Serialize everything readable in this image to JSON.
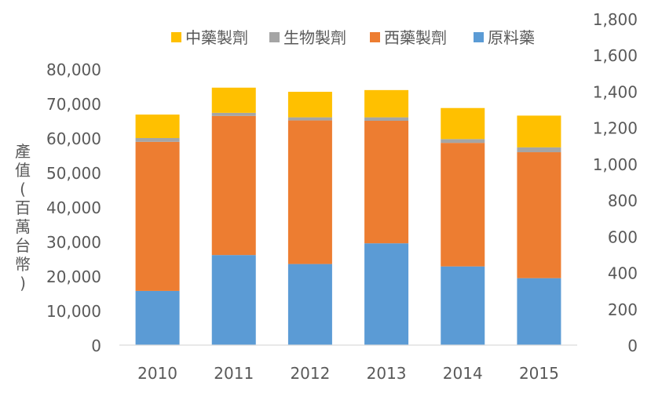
{
  "chart_data": {
    "type": "bar",
    "stacked": true,
    "title": "",
    "ylabel": "產值(百萬台幣)",
    "categories": [
      "2010",
      "2011",
      "2012",
      "2013",
      "2014",
      "2015"
    ],
    "series": [
      {
        "name": "原料藥",
        "color": "#5B9BD5",
        "values": [
          15700,
          26100,
          23500,
          29500,
          22800,
          19400
        ]
      },
      {
        "name": "西藥製劑",
        "color": "#ED7D31",
        "values": [
          43200,
          40300,
          41600,
          35500,
          35800,
          36500
        ]
      },
      {
        "name": "生物製劑",
        "color": "#A5A5A5",
        "values": [
          1100,
          900,
          900,
          1000,
          1100,
          1400
        ]
      },
      {
        "name": "中藥製劑",
        "color": "#FFC000",
        "values": [
          6800,
          7300,
          7400,
          7900,
          9000,
          9200
        ]
      }
    ],
    "legend_order": [
      "中藥製劑",
      "生物製劑",
      "西藥製劑",
      "原料藥"
    ],
    "legend_position": "top",
    "ylim": [
      0,
      80000
    ],
    "yticks": [
      "0",
      "10,000",
      "20,000",
      "30,000",
      "40,000",
      "50,000",
      "60,000",
      "70,000",
      "80,000"
    ],
    "y2lim": [
      0,
      1800
    ],
    "y2ticks": [
      "0",
      "200",
      "400",
      "600",
      "800",
      "1,000",
      "1,200",
      "1,400",
      "1,600",
      "1,800"
    ],
    "grid": false
  }
}
